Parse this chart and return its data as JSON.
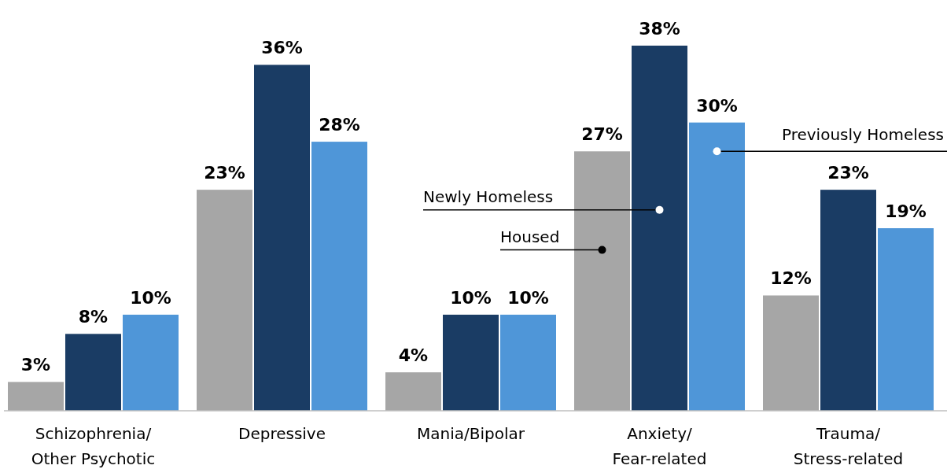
{
  "chart_data": {
    "type": "bar",
    "categories": [
      "Schizophrenia/\nOther Psychotic",
      "Depressive",
      "Mania/Bipolar",
      "Anxiety/\nFear-related",
      "Trauma/\nStress-related"
    ],
    "series": [
      {
        "name": "Housed",
        "color": "#a6a6a6",
        "values": [
          3,
          23,
          4,
          27,
          12
        ],
        "value_labels": [
          "3%",
          "23%",
          "4%",
          "27%",
          "12%"
        ]
      },
      {
        "name": "Newly Homeless",
        "color": "#1a3c64",
        "values": [
          8,
          36,
          10,
          38,
          23
        ],
        "value_labels": [
          "8%",
          "36%",
          "10%",
          "38%",
          "23%"
        ]
      },
      {
        "name": "Previously Homeless",
        "color": "#4f96d8",
        "values": [
          10,
          28,
          10,
          30,
          19
        ],
        "value_labels": [
          "10%",
          "28%",
          "10%",
          "30%",
          "19%"
        ]
      }
    ]
  }
}
